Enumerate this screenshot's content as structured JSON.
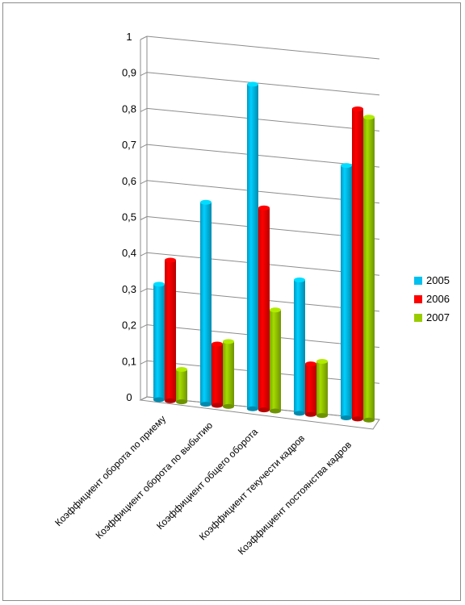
{
  "chart_data": {
    "type": "bar",
    "categories": [
      "Коэффициент оборота по приему",
      "Коэффициент оборота по выбытию",
      "Коэффициент общего оборота",
      "Коэффициент текучести кадров",
      "Коэффициент постоянства кадров"
    ],
    "series": [
      {
        "name": "2005",
        "values": [
          0.32,
          0.56,
          0.9,
          0.37,
          0.7
        ],
        "color": "#00c0f0"
      },
      {
        "name": "2006",
        "values": [
          0.39,
          0.17,
          0.56,
          0.14,
          0.86
        ],
        "color": "#ff0000"
      },
      {
        "name": "2007",
        "values": [
          0.09,
          0.18,
          0.28,
          0.15,
          0.84
        ],
        "color": "#99cc00"
      }
    ],
    "yticks": [
      "0",
      "0,1",
      "0,2",
      "0,3",
      "0,4",
      "0,5",
      "0,6",
      "0,7",
      "0,8",
      "0,9",
      "1"
    ],
    "ylim": [
      0,
      1
    ],
    "grid": true,
    "legend_position": "right"
  }
}
